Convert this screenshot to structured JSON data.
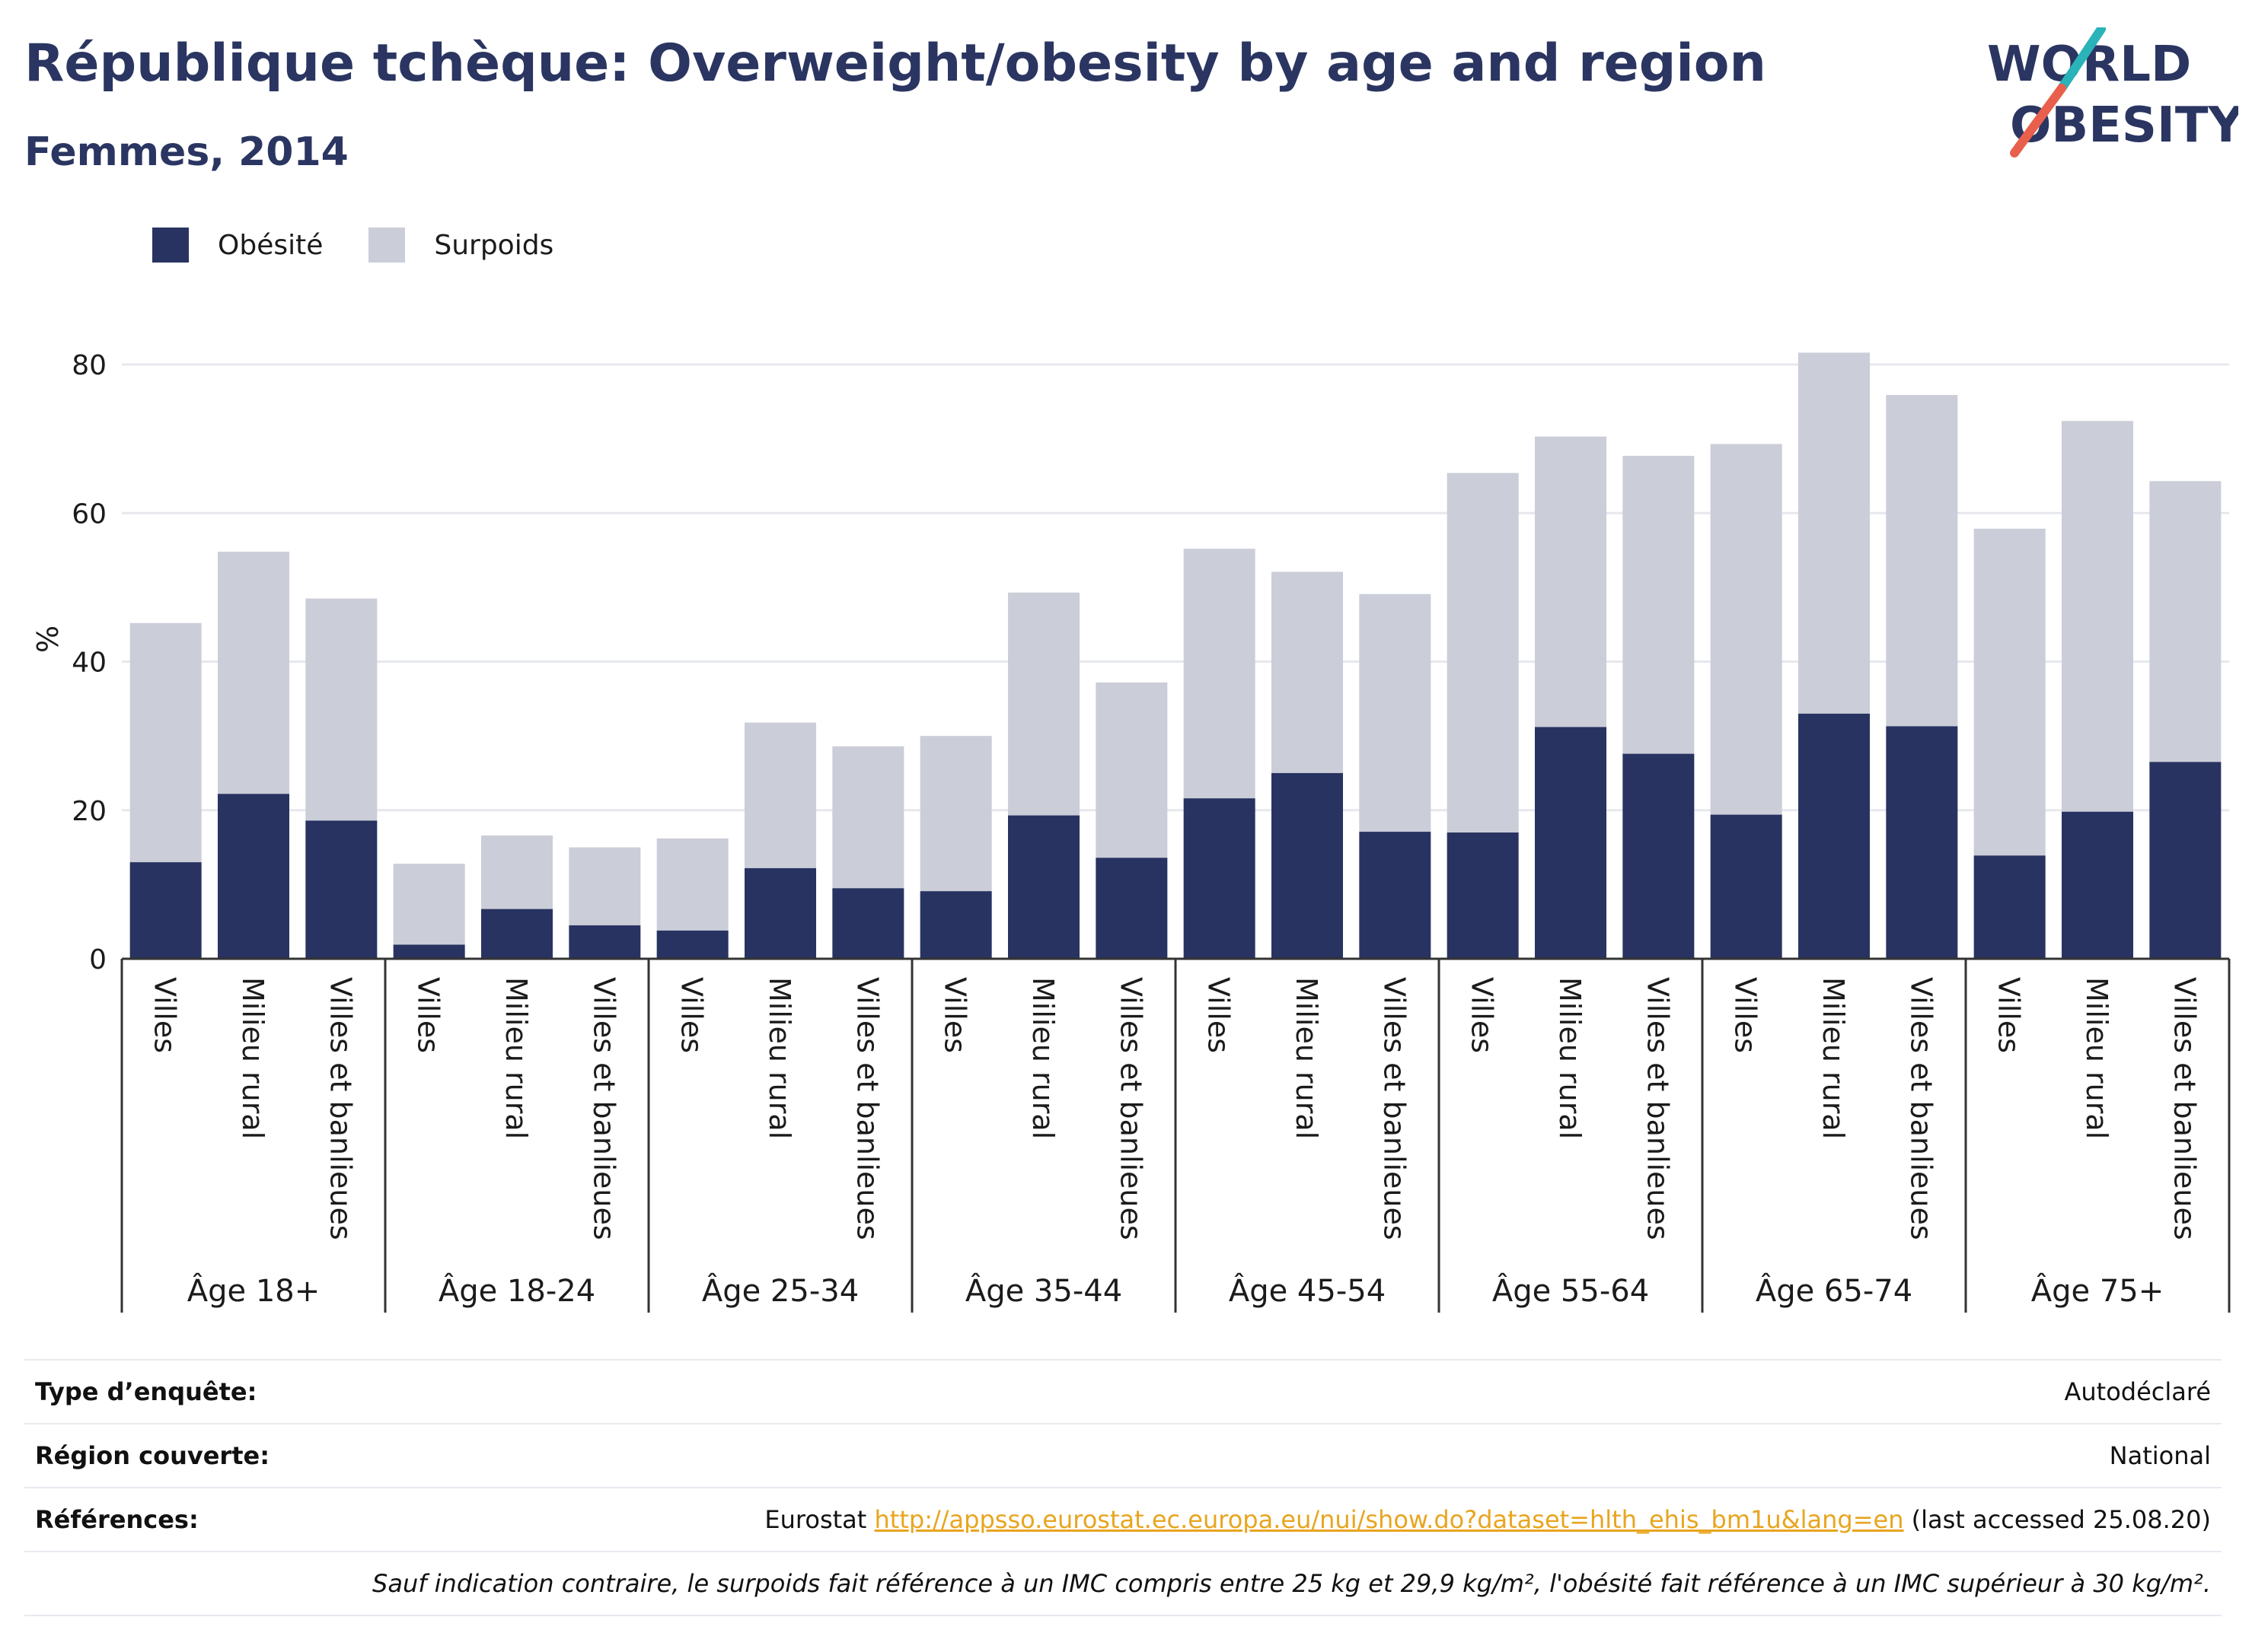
{
  "header": {
    "title": "République tchèque: Overweight/obesity by age and region",
    "subtitle": "Femmes, 2014"
  },
  "logo": {
    "line1": "WORLD",
    "line2": "OBESITY",
    "icon": "world-obesity-logo"
  },
  "colors": {
    "obesity": "#283361",
    "overweight": "#cbcdd8",
    "accent_teal": "#2ab3b8",
    "accent_red": "#e8604c",
    "link": "#e8a51f"
  },
  "legend": {
    "obesity_label": "Obésité",
    "overweight_label": "Surpoids"
  },
  "chart_data": {
    "type": "bar",
    "stacked": true,
    "ylabel": "%",
    "ylim": [
      0,
      84
    ],
    "yticks": [
      0,
      20,
      40,
      60,
      80
    ],
    "grid": true,
    "legend_position": "top-left",
    "groups": [
      {
        "label": "Âge 18+",
        "categories": [
          "Villes",
          "Milieu rural",
          "Villes et banlieues"
        ],
        "obesity": [
          13.0,
          22.2,
          18.6
        ],
        "overweight": [
          32.2,
          32.6,
          29.9
        ]
      },
      {
        "label": "Âge 18-24",
        "categories": [
          "Villes",
          "Milieu rural",
          "Villes et banlieues"
        ],
        "obesity": [
          1.9,
          6.7,
          4.5
        ],
        "overweight": [
          10.9,
          9.9,
          10.5
        ]
      },
      {
        "label": "Âge 25-34",
        "categories": [
          "Villes",
          "Milieu rural",
          "Villes et banlieues"
        ],
        "obesity": [
          3.8,
          12.2,
          9.5
        ],
        "overweight": [
          12.4,
          19.6,
          19.1
        ]
      },
      {
        "label": "Âge 35-44",
        "categories": [
          "Villes",
          "Milieu rural",
          "Villes et banlieues"
        ],
        "obesity": [
          9.1,
          19.3,
          13.6
        ],
        "overweight": [
          20.9,
          30.0,
          23.6
        ]
      },
      {
        "label": "Âge 45-54",
        "categories": [
          "Villes",
          "Milieu rural",
          "Villes et banlieues"
        ],
        "obesity": [
          21.6,
          25.0,
          17.1
        ],
        "overweight": [
          33.6,
          27.1,
          32.0
        ]
      },
      {
        "label": "Âge 55-64",
        "categories": [
          "Villes",
          "Milieu rural",
          "Villes et banlieues"
        ],
        "obesity": [
          17.0,
          31.2,
          27.6
        ],
        "overweight": [
          48.4,
          39.1,
          40.1
        ]
      },
      {
        "label": "Âge 65-74",
        "categories": [
          "Villes",
          "Milieu rural",
          "Villes et banlieues"
        ],
        "obesity": [
          19.4,
          33.0,
          31.3
        ],
        "overweight": [
          49.9,
          48.6,
          44.6
        ]
      },
      {
        "label": "Âge 75+",
        "categories": [
          "Villes",
          "Milieu rural",
          "Villes et banlieues"
        ],
        "obesity": [
          13.9,
          19.8,
          26.5
        ],
        "overweight": [
          44.0,
          52.6,
          37.8
        ]
      }
    ]
  },
  "info": {
    "survey_type_label": "Type d’enquête:",
    "survey_type_value": "Autodéclaré",
    "region_label": "Région couverte:",
    "region_value": "National",
    "references_label": "Références:",
    "references_prefix": "Eurostat",
    "references_link": "http://appsso.eurostat.ec.europa.eu/nui/show.do?dataset=hlth_ehis_bm1u&lang=en",
    "references_suffix": "(last accessed 25.08.20)",
    "note": "Sauf indication contraire, le surpoids fait référence à un IMC compris entre 25 kg et 29,9 kg/m², l'obésité fait référence à un IMC supérieur à 30 kg/m²."
  }
}
